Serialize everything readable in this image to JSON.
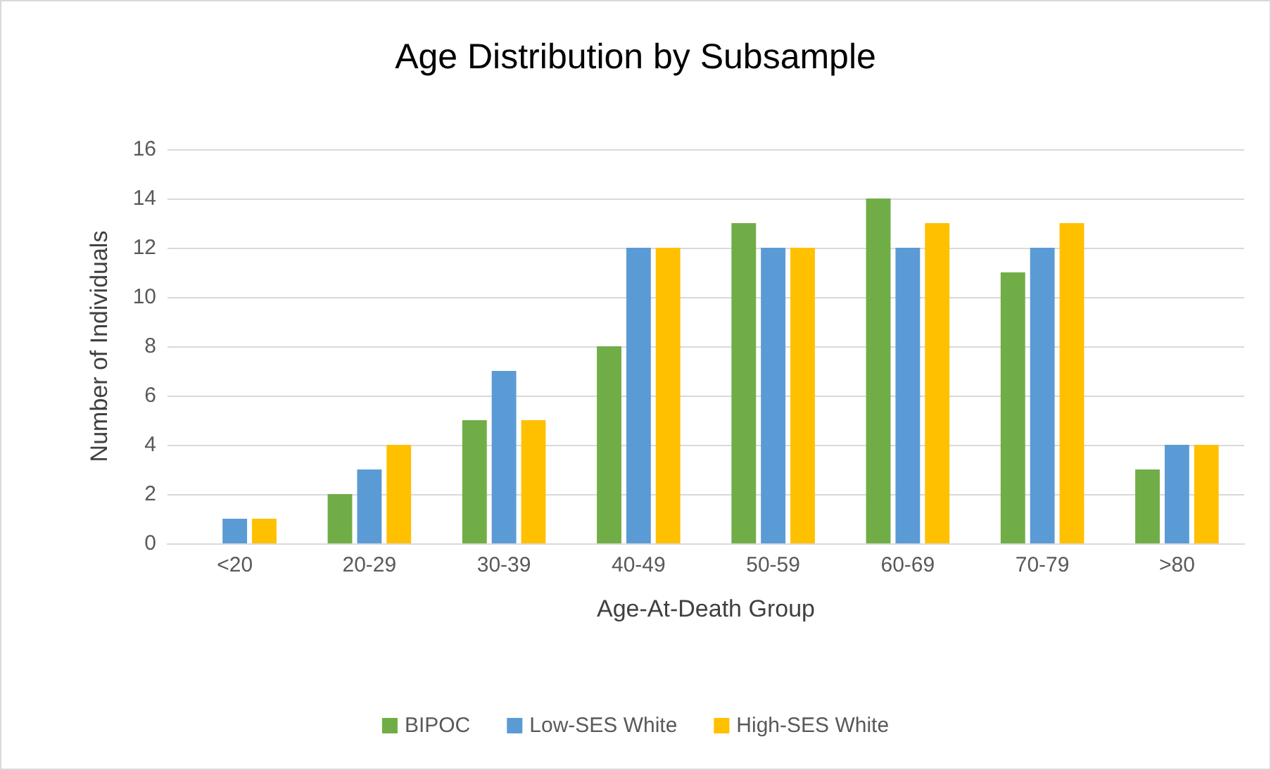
{
  "chart_data": {
    "type": "bar",
    "title": "Age Distribution by Subsample",
    "xlabel": "Age-At-Death Group",
    "ylabel": "Number of Individuals",
    "categories": [
      "<20",
      "20-29",
      "30-39",
      "40-49",
      "50-59",
      "60-69",
      "70-79",
      ">80"
    ],
    "series": [
      {
        "name": "BIPOC",
        "color": "#70ad47",
        "values": [
          0,
          2,
          5,
          8,
          13,
          14,
          11,
          3
        ]
      },
      {
        "name": "Low-SES White",
        "color": "#5b9bd5",
        "values": [
          1,
          3,
          7,
          12,
          12,
          12,
          12,
          4
        ]
      },
      {
        "name": "High-SES White",
        "color": "#ffc000",
        "values": [
          1,
          4,
          5,
          12,
          12,
          13,
          13,
          4
        ]
      }
    ],
    "ylim": [
      0,
      16
    ],
    "yticks": [
      0,
      2,
      4,
      6,
      8,
      10,
      12,
      14,
      16
    ],
    "grid": "y",
    "legend": "bottom"
  }
}
